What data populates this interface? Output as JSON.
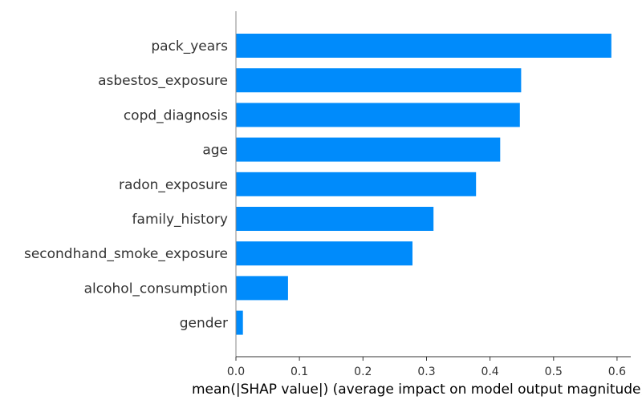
{
  "chart_data": {
    "type": "bar",
    "orientation": "horizontal",
    "categories": [
      "pack_years",
      "asbestos_exposure",
      "copd_diagnosis",
      "age",
      "radon_exposure",
      "family_history",
      "secondhand_smoke_exposure",
      "alcohol_consumption",
      "gender"
    ],
    "values": [
      0.591,
      0.449,
      0.447,
      0.416,
      0.378,
      0.311,
      0.278,
      0.082,
      0.011
    ],
    "xlabel": "mean(|SHAP value|) (average impact on model output magnitude)",
    "ylabel": "",
    "title": "",
    "xlim": [
      0,
      0.62
    ],
    "xticks": [
      0.0,
      0.1,
      0.2,
      0.3,
      0.4,
      0.5,
      0.6
    ],
    "xtick_labels": [
      "0.0",
      "0.1",
      "0.2",
      "0.3",
      "0.4",
      "0.5",
      "0.6"
    ],
    "bar_color": "#008bfb",
    "grid": false,
    "legend": "none"
  }
}
